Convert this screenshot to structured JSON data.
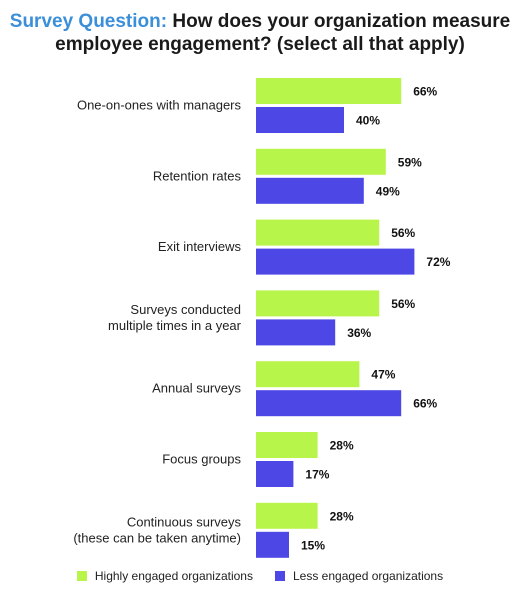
{
  "title": {
    "prefix": "Survey Question:",
    "line1": "How does your organization measure",
    "line2": "employee engagement? (select all that apply)"
  },
  "chart_data": {
    "type": "bar",
    "orientation": "horizontal",
    "categories": [
      [
        "One-on-ones with managers"
      ],
      [
        "Retention rates"
      ],
      [
        "Exit interviews"
      ],
      [
        "Surveys conducted",
        "multiple times in a year"
      ],
      [
        "Annual surveys"
      ],
      [
        "Focus groups"
      ],
      [
        "Continuous surveys",
        "(these can be taken anytime)"
      ]
    ],
    "series": [
      {
        "name": "Highly engaged organizations",
        "color": "#b8f54a",
        "values": [
          66,
          59,
          56,
          56,
          47,
          28,
          28
        ]
      },
      {
        "name": "Less engaged organizations",
        "color": "#4d47e6",
        "values": [
          40,
          49,
          72,
          36,
          66,
          17,
          15
        ]
      }
    ],
    "value_suffix": "%",
    "xlim": [
      0,
      100
    ],
    "grid": false,
    "legend_position": "bottom"
  }
}
